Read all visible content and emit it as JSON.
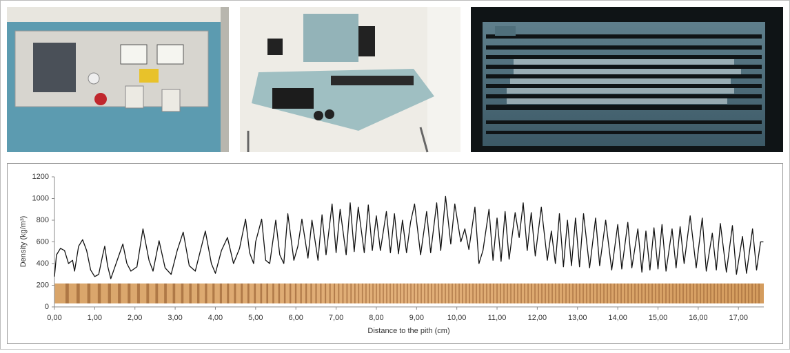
{
  "chart_data": {
    "type": "line",
    "x_label": "Distance to the pith (cm)",
    "y_label": "Density (kg/m³)",
    "color": "#111111",
    "xlim": [
      0,
      17.63
    ],
    "ylim": [
      0,
      1200
    ],
    "yticks": [
      0,
      200,
      400,
      600,
      800,
      1000,
      1200
    ],
    "xticks": [
      {
        "value": 0,
        "label": "0,00"
      },
      {
        "value": 1,
        "label": "1,00"
      },
      {
        "value": 2,
        "label": "2,00"
      },
      {
        "value": 3,
        "label": "3,00"
      },
      {
        "value": 4,
        "label": "4,00"
      },
      {
        "value": 5,
        "label": "5,00"
      },
      {
        "value": 6,
        "label": "6,00"
      },
      {
        "value": 7,
        "label": "7,00"
      },
      {
        "value": 8,
        "label": "8,00"
      },
      {
        "value": 9,
        "label": "9,00"
      },
      {
        "value": 10,
        "label": "10,00"
      },
      {
        "value": 11,
        "label": "11,00"
      },
      {
        "value": 12,
        "label": "12,00"
      },
      {
        "value": 13,
        "label": "13,00"
      },
      {
        "value": 14,
        "label": "14,00"
      },
      {
        "value": 15,
        "label": "15,00"
      },
      {
        "value": 16,
        "label": "16,00"
      },
      {
        "value": 17,
        "label": "17,00"
      }
    ],
    "x": [
      0.0,
      0.05,
      0.15,
      0.25,
      0.35,
      0.45,
      0.5,
      0.6,
      0.7,
      0.8,
      0.9,
      1.0,
      1.1,
      1.2,
      1.25,
      1.32,
      1.4,
      1.55,
      1.7,
      1.8,
      1.9,
      2.05,
      2.2,
      2.35,
      2.45,
      2.6,
      2.75,
      2.9,
      3.05,
      3.2,
      3.35,
      3.5,
      3.75,
      3.9,
      4.0,
      4.15,
      4.3,
      4.45,
      4.6,
      4.75,
      4.85,
      4.95,
      5.0,
      5.15,
      5.25,
      5.35,
      5.5,
      5.6,
      5.7,
      5.8,
      5.95,
      6.05,
      6.15,
      6.3,
      6.4,
      6.55,
      6.65,
      6.75,
      6.9,
      7.0,
      7.1,
      7.25,
      7.35,
      7.45,
      7.55,
      7.7,
      7.8,
      7.9,
      8.0,
      8.1,
      8.25,
      8.35,
      8.45,
      8.55,
      8.65,
      8.75,
      8.85,
      8.95,
      9.1,
      9.25,
      9.35,
      9.5,
      9.6,
      9.72,
      9.85,
      9.95,
      10.1,
      10.2,
      10.3,
      10.45,
      10.55,
      10.65,
      10.8,
      10.9,
      11.0,
      11.1,
      11.2,
      11.3,
      11.45,
      11.55,
      11.65,
      11.75,
      11.85,
      11.95,
      12.1,
      12.25,
      12.35,
      12.45,
      12.55,
      12.65,
      12.75,
      12.85,
      12.95,
      13.05,
      13.15,
      13.3,
      13.45,
      13.55,
      13.7,
      13.85,
      14.0,
      14.1,
      14.25,
      14.35,
      14.5,
      14.6,
      14.7,
      14.8,
      14.9,
      15.0,
      15.1,
      15.2,
      15.35,
      15.45,
      15.55,
      15.65,
      15.8,
      15.95,
      16.1,
      16.2,
      16.35,
      16.45,
      16.55,
      16.7,
      16.85,
      16.95,
      17.1,
      17.2,
      17.35,
      17.45,
      17.55,
      17.62
    ],
    "values": [
      280,
      480,
      540,
      520,
      400,
      430,
      330,
      560,
      620,
      520,
      340,
      280,
      300,
      480,
      560,
      380,
      260,
      420,
      580,
      400,
      330,
      370,
      720,
      430,
      330,
      610,
      360,
      300,
      520,
      690,
      380,
      330,
      700,
      400,
      310,
      520,
      640,
      400,
      540,
      810,
      500,
      400,
      600,
      810,
      430,
      400,
      800,
      480,
      400,
      860,
      430,
      560,
      810,
      450,
      800,
      430,
      850,
      480,
      950,
      500,
      900,
      480,
      960,
      510,
      920,
      500,
      940,
      520,
      840,
      520,
      880,
      500,
      860,
      490,
      800,
      500,
      780,
      950,
      480,
      880,
      500,
      960,
      520,
      1020,
      580,
      950,
      600,
      720,
      530,
      920,
      400,
      520,
      900,
      430,
      820,
      420,
      880,
      440,
      870,
      640,
      960,
      520,
      870,
      470,
      920,
      430,
      700,
      400,
      860,
      370,
      800,
      380,
      820,
      370,
      860,
      360,
      820,
      380,
      800,
      340,
      760,
      350,
      780,
      360,
      720,
      320,
      700,
      340,
      730,
      350,
      760,
      330,
      720,
      360,
      740,
      400,
      840,
      360,
      820,
      330,
      680,
      340,
      770,
      320,
      750,
      300,
      650,
      310,
      720,
      340,
      600,
      600
    ]
  }
}
